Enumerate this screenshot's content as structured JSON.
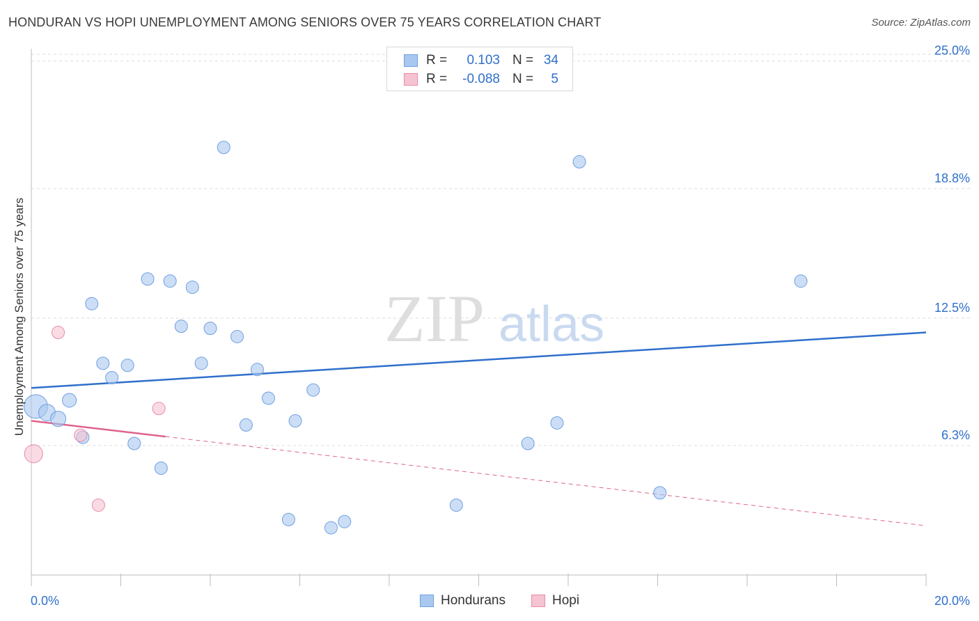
{
  "header": {
    "title": "HONDURAN VS HOPI UNEMPLOYMENT AMONG SENIORS OVER 75 YEARS CORRELATION CHART",
    "source": "Source: ZipAtlas.com"
  },
  "watermark": {
    "zip": "ZIP",
    "atlas": "atlas"
  },
  "legend": {
    "rows": [
      {
        "r_label": "R =",
        "r_value": "0.103",
        "n_label": "N =",
        "n_value": "34",
        "color": "#a9c8f0",
        "border": "#6f9fe0"
      },
      {
        "r_label": "R =",
        "r_value": "-0.088",
        "n_label": "N =",
        "n_value": "5",
        "color": "#f6c3d2",
        "border": "#e98aa6"
      }
    ]
  },
  "bottom_legend": [
    {
      "label": "Hondurans",
      "color": "#a9c8f0",
      "border": "#6f9fe0"
    },
    {
      "label": "Hopi",
      "color": "#f6c3d2",
      "border": "#e98aa6"
    }
  ],
  "chart_data": {
    "type": "scatter",
    "title": "HONDURAN VS HOPI UNEMPLOYMENT AMONG SENIORS OVER 75 YEARS CORRELATION CHART",
    "xlabel": "",
    "ylabel": "Unemployment Among Seniors over 75 years",
    "xlim": [
      0,
      20
    ],
    "ylim": [
      0,
      25.6
    ],
    "x_tick_labels": [
      "0.0%",
      "20.0%"
    ],
    "y_ticks": [
      6.3,
      12.5,
      18.8,
      25.0
    ],
    "y_tick_labels": [
      "6.3%",
      "12.5%",
      "18.8%",
      "25.0%"
    ],
    "grid": "horizontal-dashed",
    "legend_position": "top-center",
    "series": [
      {
        "name": "Hondurans",
        "color": "#a9c8f0",
        "stroke": "#6f9fe0",
        "trend_color": "#2f6fcb",
        "trend": {
          "x": [
            0,
            20
          ],
          "y": [
            9.1,
            11.8
          ]
        },
        "points": [
          {
            "x": 0.1,
            "y": 8.2,
            "r": 17
          },
          {
            "x": 0.35,
            "y": 7.9,
            "r": 12
          },
          {
            "x": 0.6,
            "y": 7.6,
            "r": 11
          },
          {
            "x": 0.85,
            "y": 8.5,
            "r": 10
          },
          {
            "x": 1.15,
            "y": 6.7,
            "r": 9
          },
          {
            "x": 1.35,
            "y": 13.2,
            "r": 9
          },
          {
            "x": 1.6,
            "y": 10.3,
            "r": 9
          },
          {
            "x": 1.8,
            "y": 9.6,
            "r": 9
          },
          {
            "x": 2.15,
            "y": 10.2,
            "r": 9
          },
          {
            "x": 2.3,
            "y": 6.4,
            "r": 9
          },
          {
            "x": 2.6,
            "y": 14.4,
            "r": 9
          },
          {
            "x": 2.9,
            "y": 5.2,
            "r": 9
          },
          {
            "x": 3.1,
            "y": 14.3,
            "r": 9
          },
          {
            "x": 3.35,
            "y": 12.1,
            "r": 9
          },
          {
            "x": 3.6,
            "y": 14.0,
            "r": 9
          },
          {
            "x": 3.8,
            "y": 10.3,
            "r": 9
          },
          {
            "x": 4.0,
            "y": 12.0,
            "r": 9
          },
          {
            "x": 4.3,
            "y": 20.8,
            "r": 9
          },
          {
            "x": 4.6,
            "y": 11.6,
            "r": 9
          },
          {
            "x": 4.8,
            "y": 7.3,
            "r": 9
          },
          {
            "x": 5.05,
            "y": 10.0,
            "r": 9
          },
          {
            "x": 5.3,
            "y": 8.6,
            "r": 9
          },
          {
            "x": 5.75,
            "y": 2.7,
            "r": 9
          },
          {
            "x": 5.9,
            "y": 7.5,
            "r": 9
          },
          {
            "x": 6.3,
            "y": 9.0,
            "r": 9
          },
          {
            "x": 6.7,
            "y": 2.3,
            "r": 9
          },
          {
            "x": 7.0,
            "y": 2.6,
            "r": 9
          },
          {
            "x": 9.5,
            "y": 3.4,
            "r": 9
          },
          {
            "x": 11.1,
            "y": 6.4,
            "r": 9
          },
          {
            "x": 11.35,
            "y": 24.9,
            "r": 9
          },
          {
            "x": 11.75,
            "y": 7.4,
            "r": 9
          },
          {
            "x": 12.25,
            "y": 20.1,
            "r": 9
          },
          {
            "x": 14.05,
            "y": 4.0,
            "r": 9
          },
          {
            "x": 17.2,
            "y": 14.3,
            "r": 9
          }
        ]
      },
      {
        "name": "Hopi",
        "color": "#f6c3d2",
        "stroke": "#e98aa6",
        "trend_color": "#e0628d",
        "trend": {
          "x": [
            0,
            20
          ],
          "y": [
            7.5,
            2.4
          ],
          "solid_until": 3.0
        },
        "points": [
          {
            "x": 0.05,
            "y": 5.9,
            "r": 13
          },
          {
            "x": 0.6,
            "y": 11.8,
            "r": 9
          },
          {
            "x": 1.1,
            "y": 6.8,
            "r": 9
          },
          {
            "x": 1.5,
            "y": 3.4,
            "r": 9
          },
          {
            "x": 2.85,
            "y": 8.1,
            "r": 9
          }
        ]
      }
    ]
  }
}
